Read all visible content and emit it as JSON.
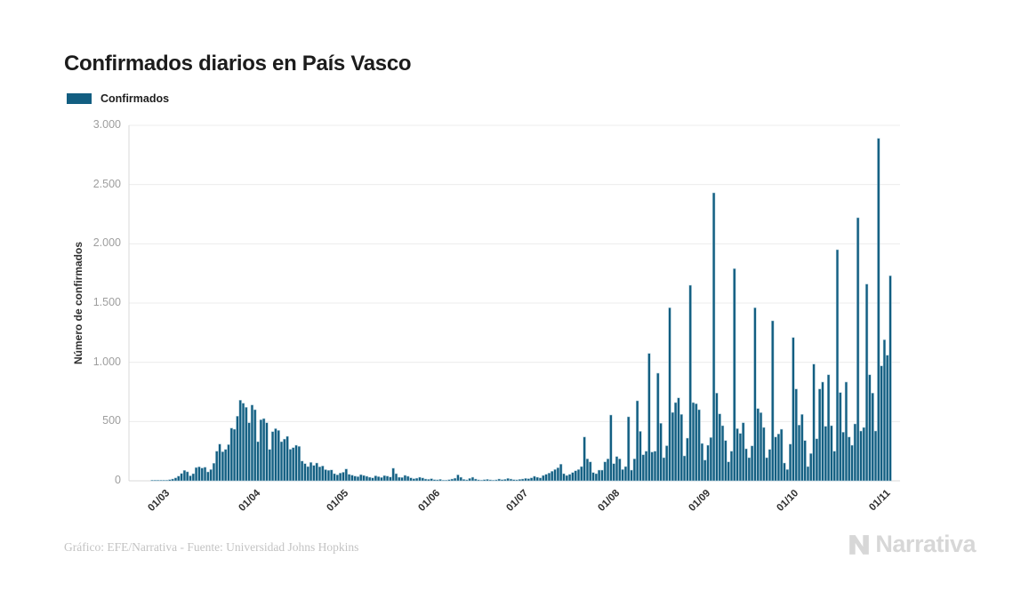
{
  "title": "Confirmados diarios en País Vasco",
  "legend": {
    "label": "Confirmados"
  },
  "footer": {
    "credit": "Gráfico: EFE/Narrativa - Fuente: Universidad Johns Hopkins",
    "brand": "Narrativa"
  },
  "chart_data": {
    "type": "bar",
    "title": "Confirmados diarios en País Vasco",
    "xlabel": "",
    "ylabel": "Número de confirmados",
    "ylim": [
      0,
      3000
    ],
    "grid": true,
    "legend_position": "top-left",
    "colors": {
      "bar": "#125e81",
      "bar_stroke": "#a9c9d8",
      "grid": "#ececec",
      "axis": "#d9d9d9",
      "tick_text": "#9e9e9e",
      "label_text": "#2f2f2f"
    },
    "y_axis": {
      "tick_values": [
        0,
        500,
        1000,
        1500,
        2000,
        2500,
        3000
      ],
      "tick_labels": [
        "0",
        "500",
        "1.000",
        "1.500",
        "2.000",
        "2.500",
        "3.000"
      ]
    },
    "x_axis": {
      "description": "daily bars from 19 Feb 2020 (index 0) to 3 Nov 2020 (index 258); ticks mark the first day of each month",
      "ticks": [
        {
          "index": 11,
          "label": "01/03"
        },
        {
          "index": 42,
          "label": "01/04"
        },
        {
          "index": 72,
          "label": "01/05"
        },
        {
          "index": 103,
          "label": "01/06"
        },
        {
          "index": 133,
          "label": "01/07"
        },
        {
          "index": 164,
          "label": "01/08"
        },
        {
          "index": 195,
          "label": "01/09"
        },
        {
          "index": 225,
          "label": "01/10"
        },
        {
          "index": 256,
          "label": "01/11"
        }
      ]
    },
    "series": [
      {
        "name": "Confirmados",
        "values": [
          0,
          0,
          0,
          0,
          0,
          0,
          0,
          1,
          2,
          2,
          4,
          4,
          6,
          10,
          15,
          25,
          40,
          62,
          88,
          76,
          42,
          60,
          112,
          118,
          108,
          115,
          75,
          95,
          148,
          250,
          310,
          245,
          265,
          305,
          445,
          435,
          545,
          680,
          655,
          620,
          490,
          640,
          600,
          330,
          515,
          525,
          490,
          265,
          415,
          440,
          425,
          330,
          352,
          375,
          266,
          280,
          300,
          290,
          167,
          145,
          120,
          155,
          130,
          150,
          118,
          125,
          94,
          88,
          92,
          60,
          50,
          65,
          72,
          100,
          55,
          48,
          40,
          35,
          52,
          45,
          38,
          30,
          25,
          42,
          35,
          28,
          44,
          40,
          32,
          106,
          60,
          30,
          28,
          46,
          38,
          25,
          18,
          22,
          30,
          24,
          15,
          12,
          18,
          10,
          8,
          12,
          6,
          5,
          10,
          15,
          22,
          50,
          30,
          12,
          8,
          20,
          30,
          15,
          8,
          5,
          10,
          12,
          8,
          5,
          8,
          15,
          10,
          12,
          20,
          15,
          10,
          8,
          12,
          15,
          20,
          18,
          25,
          38,
          30,
          25,
          45,
          55,
          65,
          80,
          95,
          110,
          140,
          60,
          45,
          55,
          70,
          85,
          95,
          120,
          370,
          185,
          160,
          70,
          60,
          90,
          90,
          160,
          185,
          555,
          145,
          205,
          185,
          95,
          120,
          540,
          90,
          185,
          675,
          417,
          220,
          250,
          1075,
          243,
          250,
          908,
          485,
          195,
          296,
          1460,
          577,
          660,
          700,
          560,
          210,
          360,
          1650,
          660,
          650,
          600,
          315,
          175,
          300,
          365,
          2430,
          740,
          565,
          465,
          340,
          160,
          250,
          1790,
          440,
          400,
          490,
          270,
          195,
          295,
          1460,
          610,
          575,
          450,
          195,
          265,
          1350,
          370,
          395,
          435,
          150,
          95,
          310,
          1209,
          775,
          470,
          560,
          340,
          120,
          230,
          985,
          355,
          775,
          833,
          460,
          895,
          465,
          250,
          1950,
          745,
          410,
          833,
          370,
          300,
          480,
          2220,
          420,
          450,
          1660,
          895,
          740,
          420,
          2890,
          970,
          1190,
          1060,
          1730
        ]
      }
    ]
  }
}
